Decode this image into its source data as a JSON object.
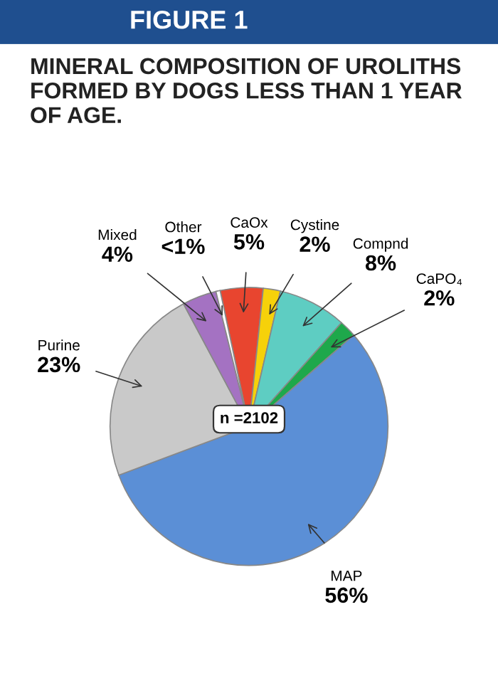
{
  "chart_data": {
    "type": "pie",
    "title": "MINERAL COMPOSITION OF UROLITHS FORMED BY DOGS LESS THAN 1 YEAR OF AGE.",
    "categories": [
      "CaOx",
      "Cystine",
      "Compnd",
      "CaPO₄",
      "MAP",
      "Purine",
      "Mixed",
      "Other"
    ],
    "values": [
      5,
      2,
      8,
      2,
      56,
      23,
      4,
      0.5
    ],
    "value_labels": [
      "5%",
      "2%",
      "8%",
      "2%",
      "56%",
      "23%",
      "4%",
      "<1%"
    ],
    "colors": [
      "#e8452f",
      "#f6d10a",
      "#5ecdc2",
      "#1ea84b",
      "#5b8fd6",
      "#c9c9c9",
      "#a472c2",
      "#ffffff"
    ],
    "annotations": [
      "FIGURE 1",
      "n =2102"
    ]
  }
}
